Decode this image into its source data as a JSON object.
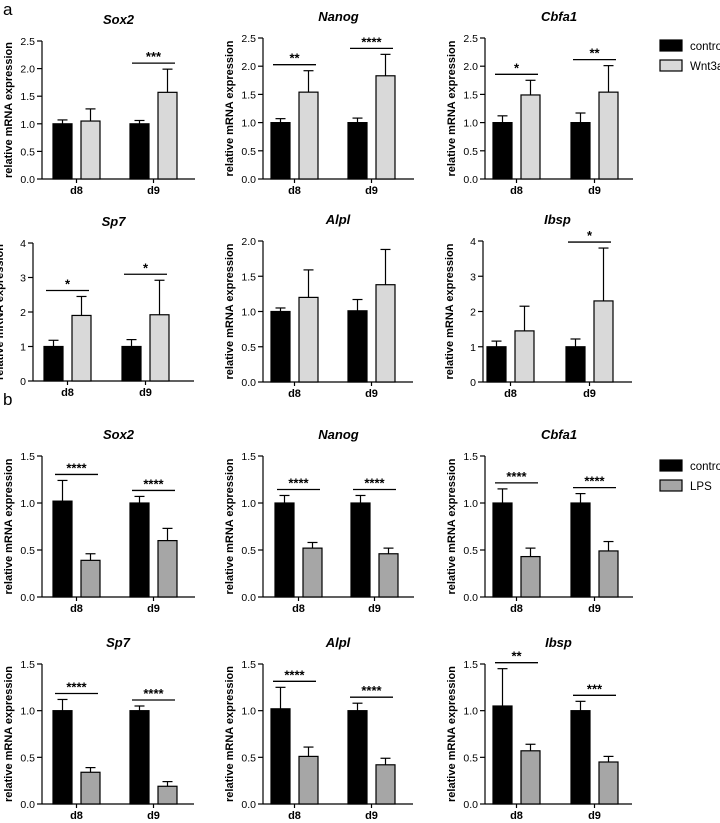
{
  "figure": {
    "label_a": "a",
    "label_b": "b"
  },
  "colors": {
    "control": "#000000",
    "wnt3a": "#d9d9d9",
    "lps": "#a6a6a6",
    "axis": "#000000"
  },
  "legends": {
    "a": [
      {
        "label": "control",
        "color": "#000000"
      },
      {
        "label": "Wnt3a",
        "color": "#d9d9d9"
      }
    ],
    "b": [
      {
        "label": "control",
        "color": "#000000"
      },
      {
        "label": "LPS",
        "color": "#a6a6a6"
      }
    ]
  },
  "chart_data": [
    {
      "id": "a-sox2",
      "panel": "a",
      "type": "bar",
      "title": "Sox2",
      "ylabel": "relative mRNA expression",
      "ylim": [
        0,
        2.5
      ],
      "ticks": [
        0,
        0.5,
        1.0,
        1.5,
        2.0,
        2.5
      ],
      "tick_labels": [
        "0.0",
        "0.5",
        "1.0",
        "1.5",
        "2.0",
        "2.5"
      ],
      "categories": [
        "d8",
        "d9"
      ],
      "series": [
        {
          "name": "control",
          "values": [
            1.0,
            1.0
          ],
          "errors": [
            0.07,
            0.06
          ]
        },
        {
          "name": "Wnt3a",
          "values": [
            1.05,
            1.57
          ],
          "errors": [
            0.22,
            0.42
          ]
        }
      ],
      "annotations": [
        null,
        "***"
      ]
    },
    {
      "id": "a-nanog",
      "panel": "a",
      "type": "bar",
      "title": "Nanog",
      "ylabel": "relative mRNA expression",
      "ylim": [
        0,
        2.5
      ],
      "ticks": [
        0,
        0.5,
        1.0,
        1.5,
        2.0,
        2.5
      ],
      "tick_labels": [
        "0.0",
        "0.5",
        "1.0",
        "1.5",
        "2.0",
        "2.5"
      ],
      "categories": [
        "d8",
        "d9"
      ],
      "series": [
        {
          "name": "control",
          "values": [
            1.0,
            1.0
          ],
          "errors": [
            0.07,
            0.08
          ]
        },
        {
          "name": "Wnt3a",
          "values": [
            1.54,
            1.83
          ],
          "errors": [
            0.38,
            0.38
          ]
        }
      ],
      "annotations": [
        "**",
        "****"
      ]
    },
    {
      "id": "a-cbfa1",
      "panel": "a",
      "type": "bar",
      "title": "Cbfa1",
      "ylabel": "relative mRNA expression",
      "ylim": [
        0,
        2.5
      ],
      "ticks": [
        0,
        0.5,
        1.0,
        1.5,
        2.0,
        2.5
      ],
      "tick_labels": [
        "0.0",
        "0.5",
        "1.0",
        "1.5",
        "2.0",
        "2.5"
      ],
      "categories": [
        "d8",
        "d9"
      ],
      "series": [
        {
          "name": "control",
          "values": [
            1.0,
            1.0
          ],
          "errors": [
            0.12,
            0.17
          ]
        },
        {
          "name": "Wnt3a",
          "values": [
            1.49,
            1.54
          ],
          "errors": [
            0.26,
            0.47
          ]
        }
      ],
      "annotations": [
        "*",
        "**"
      ]
    },
    {
      "id": "a-sp7",
      "panel": "a",
      "type": "bar",
      "title": "Sp7",
      "ylabel": "relative mRNA expression",
      "ylim": [
        0,
        4
      ],
      "ticks": [
        0,
        1,
        2,
        3,
        4
      ],
      "tick_labels": [
        "0",
        "1",
        "2",
        "3",
        "4"
      ],
      "categories": [
        "d8",
        "d9"
      ],
      "series": [
        {
          "name": "control",
          "values": [
            1.0,
            1.0
          ],
          "errors": [
            0.18,
            0.2
          ]
        },
        {
          "name": "Wnt3a",
          "values": [
            1.9,
            1.92
          ],
          "errors": [
            0.55,
            1.0
          ]
        }
      ],
      "annotations": [
        "*",
        "*"
      ]
    },
    {
      "id": "a-alpl",
      "panel": "a",
      "type": "bar",
      "title": "Alpl",
      "ylabel": "relative mRNA expression",
      "ylim": [
        0,
        2.0
      ],
      "ticks": [
        0,
        0.5,
        1.0,
        1.5,
        2.0
      ],
      "tick_labels": [
        "0.0",
        "0.5",
        "1.0",
        "1.5",
        "2.0"
      ],
      "categories": [
        "d8",
        "d9"
      ],
      "series": [
        {
          "name": "control",
          "values": [
            1.0,
            1.01
          ],
          "errors": [
            0.05,
            0.16
          ]
        },
        {
          "name": "Wnt3a",
          "values": [
            1.2,
            1.38
          ],
          "errors": [
            0.39,
            0.5
          ]
        }
      ],
      "annotations": [
        null,
        null
      ]
    },
    {
      "id": "a-ibsp",
      "panel": "a",
      "type": "bar",
      "title": "Ibsp",
      "ylabel": "relative mRNA expression",
      "ylim": [
        0,
        4
      ],
      "ticks": [
        0,
        1,
        2,
        3,
        4
      ],
      "tick_labels": [
        "0",
        "1",
        "2",
        "3",
        "4"
      ],
      "categories": [
        "d8",
        "d9"
      ],
      "series": [
        {
          "name": "control",
          "values": [
            1.0,
            1.0
          ],
          "errors": [
            0.16,
            0.22
          ]
        },
        {
          "name": "Wnt3a",
          "values": [
            1.45,
            2.3
          ],
          "errors": [
            0.7,
            1.5
          ]
        }
      ],
      "annotations": [
        null,
        "*"
      ]
    },
    {
      "id": "b-sox2",
      "panel": "b",
      "type": "bar",
      "title": "Sox2",
      "ylabel": "relative mRNA expression",
      "ylim": [
        0,
        1.5
      ],
      "ticks": [
        0,
        0.5,
        1.0,
        1.5
      ],
      "tick_labels": [
        "0.0",
        "0.5",
        "1.0",
        "1.5"
      ],
      "categories": [
        "d8",
        "d9"
      ],
      "series": [
        {
          "name": "control",
          "values": [
            1.02,
            1.0
          ],
          "errors": [
            0.22,
            0.07
          ]
        },
        {
          "name": "LPS",
          "values": [
            0.39,
            0.6
          ],
          "errors": [
            0.07,
            0.13
          ]
        }
      ],
      "annotations": [
        "****",
        "****"
      ]
    },
    {
      "id": "b-nanog",
      "panel": "b",
      "type": "bar",
      "title": "Nanog",
      "ylabel": "relative mRNA expression",
      "ylim": [
        0,
        1.5
      ],
      "ticks": [
        0,
        0.5,
        1.0,
        1.5
      ],
      "tick_labels": [
        "0.0",
        "0.5",
        "1.0",
        "1.5"
      ],
      "categories": [
        "d8",
        "d9"
      ],
      "series": [
        {
          "name": "control",
          "values": [
            1.0,
            1.0
          ],
          "errors": [
            0.08,
            0.08
          ]
        },
        {
          "name": "LPS",
          "values": [
            0.52,
            0.46
          ],
          "errors": [
            0.06,
            0.06
          ]
        }
      ],
      "annotations": [
        "****",
        "****"
      ]
    },
    {
      "id": "b-cbfa1",
      "panel": "b",
      "type": "bar",
      "title": "Cbfa1",
      "ylabel": "relative mRNA expression",
      "ylim": [
        0,
        1.5
      ],
      "ticks": [
        0,
        0.5,
        1.0,
        1.5
      ],
      "tick_labels": [
        "0.0",
        "0.5",
        "1.0",
        "1.5"
      ],
      "categories": [
        "d8",
        "d9"
      ],
      "series": [
        {
          "name": "control",
          "values": [
            1.0,
            1.0
          ],
          "errors": [
            0.15,
            0.1
          ]
        },
        {
          "name": "LPS",
          "values": [
            0.43,
            0.49
          ],
          "errors": [
            0.09,
            0.1
          ]
        }
      ],
      "annotations": [
        "****",
        "****"
      ]
    },
    {
      "id": "b-sp7",
      "panel": "b",
      "type": "bar",
      "title": "Sp7",
      "ylabel": "relative mRNA expression",
      "ylim": [
        0,
        1.5
      ],
      "ticks": [
        0,
        0.5,
        1.0,
        1.5
      ],
      "tick_labels": [
        "0.0",
        "0.5",
        "1.0",
        "1.5"
      ],
      "categories": [
        "d8",
        "d9"
      ],
      "series": [
        {
          "name": "control",
          "values": [
            1.0,
            1.0
          ],
          "errors": [
            0.12,
            0.05
          ]
        },
        {
          "name": "LPS",
          "values": [
            0.34,
            0.19
          ],
          "errors": [
            0.05,
            0.05
          ]
        }
      ],
      "annotations": [
        "****",
        "****"
      ]
    },
    {
      "id": "b-alpl",
      "panel": "b",
      "type": "bar",
      "title": "Alpl",
      "ylabel": "relative mRNA expression",
      "ylim": [
        0,
        1.5
      ],
      "ticks": [
        0,
        0.5,
        1.0,
        1.5
      ],
      "tick_labels": [
        "0.0",
        "0.5",
        "1.0",
        "1.5"
      ],
      "categories": [
        "d8",
        "d9"
      ],
      "series": [
        {
          "name": "control",
          "values": [
            1.02,
            1.0
          ],
          "errors": [
            0.23,
            0.08
          ]
        },
        {
          "name": "LPS",
          "values": [
            0.51,
            0.42
          ],
          "errors": [
            0.1,
            0.07
          ]
        }
      ],
      "annotations": [
        "****",
        "****"
      ]
    },
    {
      "id": "b-ibsp",
      "panel": "b",
      "type": "bar",
      "title": "Ibsp",
      "ylabel": "relative mRNA expression",
      "ylim": [
        0,
        1.5
      ],
      "ticks": [
        0,
        0.5,
        1.0,
        1.5
      ],
      "tick_labels": [
        "0.0",
        "0.5",
        "1.0",
        "1.5"
      ],
      "categories": [
        "d8",
        "d9"
      ],
      "series": [
        {
          "name": "control",
          "values": [
            1.05,
            1.0
          ],
          "errors": [
            0.4,
            0.1
          ]
        },
        {
          "name": "LPS",
          "values": [
            0.57,
            0.45
          ],
          "errors": [
            0.07,
            0.06
          ]
        }
      ],
      "annotations": [
        "**",
        "***"
      ]
    }
  ]
}
